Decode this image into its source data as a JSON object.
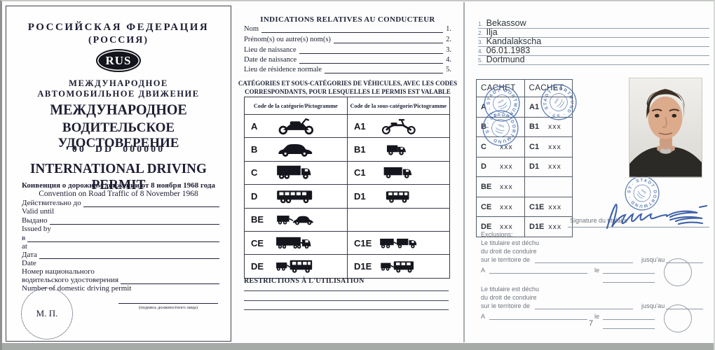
{
  "cover": {
    "country_title": "РОССИЙСКАЯ ФЕДЕРАЦИЯ",
    "country_subtitle": "(РОССИЯ)",
    "country_code": "RUS",
    "movement_line1": "МЕЖДУНАРОДНОЕ",
    "movement_line2": "АВТОМОБИЛЬНОЕ ДВИЖЕНИЕ",
    "permit_title_line1": "МЕЖДУНАРОДНОЕ",
    "permit_title_line2": "ВОДИТЕЛЬСКОЕ УДОСТОВЕРЕНИЕ",
    "permit_number": "00  DD  000000",
    "permit_title_en": "INTERNATIONAL DRIVING PERMIT",
    "convention_ru": "Конвенция о дорожном движении от 8 ноября 1968 года",
    "convention_en": "Convention on Road Traffic of 8 November 1968",
    "fields": [
      {
        "label_ru": "Действительно до",
        "label_en": "Valid until"
      },
      {
        "label_ru": "Выдано",
        "label_en": "Issued by"
      },
      {
        "label_ru": "в",
        "label_en": "at"
      },
      {
        "label_ru": "Дата",
        "label_en": "Date"
      }
    ],
    "domestic_ru1": "Номер национального",
    "domestic_ru2": "водительского удостоверения",
    "domestic_en": "Number of domestic driving permit",
    "seal_label": "М. П.",
    "official_signature_caption": "(подпись должностного лица)"
  },
  "driver_page": {
    "title": "INDICATIONS RELATIVES AU CONDUCTEUR",
    "fields": [
      {
        "label": "Nom",
        "num": "1."
      },
      {
        "label": "Prénom(s) ou autre(s) nom(s)",
        "num": "2."
      },
      {
        "label": "Lieu de naissance",
        "num": "3."
      },
      {
        "label": "Date de naissance",
        "num": "4."
      },
      {
        "label": "Lieu de résidence normale",
        "num": "5."
      }
    ],
    "categories_heading_line1": "CATÉGORIES ET SOUS-CATÉGORIES DE VÉHICULES, AVEC LES CODES",
    "categories_heading_line2": "CORRESPONDANTS, POUR LESQUELLES LE PERMIS EST VALABLE",
    "table": {
      "col1_header": "Code de la catégorie/Pictogramme",
      "col2_header": "Code de la sous-catégorie/Pictogramme",
      "rows": [
        {
          "code": "A",
          "icon": "motorcycle",
          "sub_code": "A1",
          "sub_icon": "moped"
        },
        {
          "code": "B",
          "icon": "car",
          "sub_code": "B1",
          "sub_icon": "small-truck"
        },
        {
          "code": "C",
          "icon": "truck",
          "sub_code": "C1",
          "sub_icon": "medium-truck"
        },
        {
          "code": "D",
          "icon": "bus",
          "sub_code": "D1",
          "sub_icon": "small-bus"
        },
        {
          "code": "BE",
          "icon": "trailer-car",
          "sub_code": "",
          "sub_icon": ""
        },
        {
          "code": "CE",
          "icon": "semi-truck",
          "sub_code": "C1E",
          "sub_icon": "truck-trailer"
        },
        {
          "code": "DE",
          "icon": "trailer-bus",
          "sub_code": "D1E",
          "sub_icon": "trailer-small-bus"
        }
      ]
    },
    "restrictions_heading": "RESTRICTIONS À L'UTILISATION"
  },
  "holder_page": {
    "entries": [
      {
        "num": "1.",
        "value": "Bekassow"
      },
      {
        "num": "2.",
        "value": "Ilja"
      },
      {
        "num": "3.",
        "value": "Kandalakscha"
      },
      {
        "num": "4.",
        "value": "06.01.1983"
      },
      {
        "num": "5.",
        "value": "Dortmund"
      }
    ],
    "cachet_table": {
      "header": "CACHET",
      "rows": [
        {
          "code": "A",
          "mark": "",
          "sub_code": "A1",
          "sub_mark": ""
        },
        {
          "code": "B",
          "mark": "",
          "sub_code": "B1",
          "sub_mark": "xxx"
        },
        {
          "code": "C",
          "mark": "xxx",
          "sub_code": "C1",
          "sub_mark": "xxx"
        },
        {
          "code": "D",
          "mark": "xxx",
          "sub_code": "D1",
          "sub_mark": "xxx"
        },
        {
          "code": "BE",
          "mark": "xxx",
          "sub_code": "",
          "sub_mark": ""
        },
        {
          "code": "CE",
          "mark": "xxx",
          "sub_code": "C1E",
          "sub_mark": "xxx"
        },
        {
          "code": "DE",
          "mark": "xxx",
          "sub_code": "D1E",
          "sub_mark": "xxx"
        }
      ]
    },
    "stamp_text": "STADT DORTMUND",
    "signature_label": "Signature du titulaire",
    "exclusions": {
      "heading": "Exclusions:",
      "clause_line1": "Le titulaire est déchu",
      "clause_line2": "du droit de conduire",
      "clause_line3": "sur le territoire de",
      "until_label": "jusqu'au",
      "place_label": "A",
      "date_label": "le"
    },
    "page_number": "7"
  },
  "colors": {
    "ink": "#1d1d33",
    "stamp_blue": "#4a6fae",
    "label_gray": "#70767d",
    "line_gray": "#8f9aa7"
  }
}
